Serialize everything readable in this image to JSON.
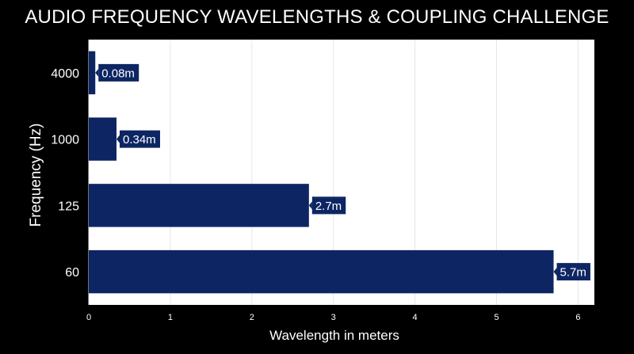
{
  "colors": {
    "background": "#000000",
    "plot_background": "#ffffff",
    "bar": "#0d2663",
    "grid": "#e6e6e6",
    "text": "#ffffff"
  },
  "chart_data": {
    "type": "bar",
    "orientation": "horizontal",
    "title": "AUDIO FREQUENCY WAVELENGTHS & COUPLING CHALLENGE",
    "xlabel": "Wavelength in meters",
    "ylabel": "Frequency (Hz)",
    "categories": [
      "4000",
      "1000",
      "125",
      "60"
    ],
    "values": [
      0.08,
      0.34,
      2.7,
      5.7
    ],
    "data_labels": [
      "0.08m",
      "0.34m",
      "2.7m",
      "5.7m"
    ],
    "xlim": [
      0,
      6.2
    ],
    "xticks": [
      "0",
      "1",
      "2",
      "3",
      "4",
      "5",
      "6"
    ],
    "grid": true,
    "legend": "none"
  }
}
